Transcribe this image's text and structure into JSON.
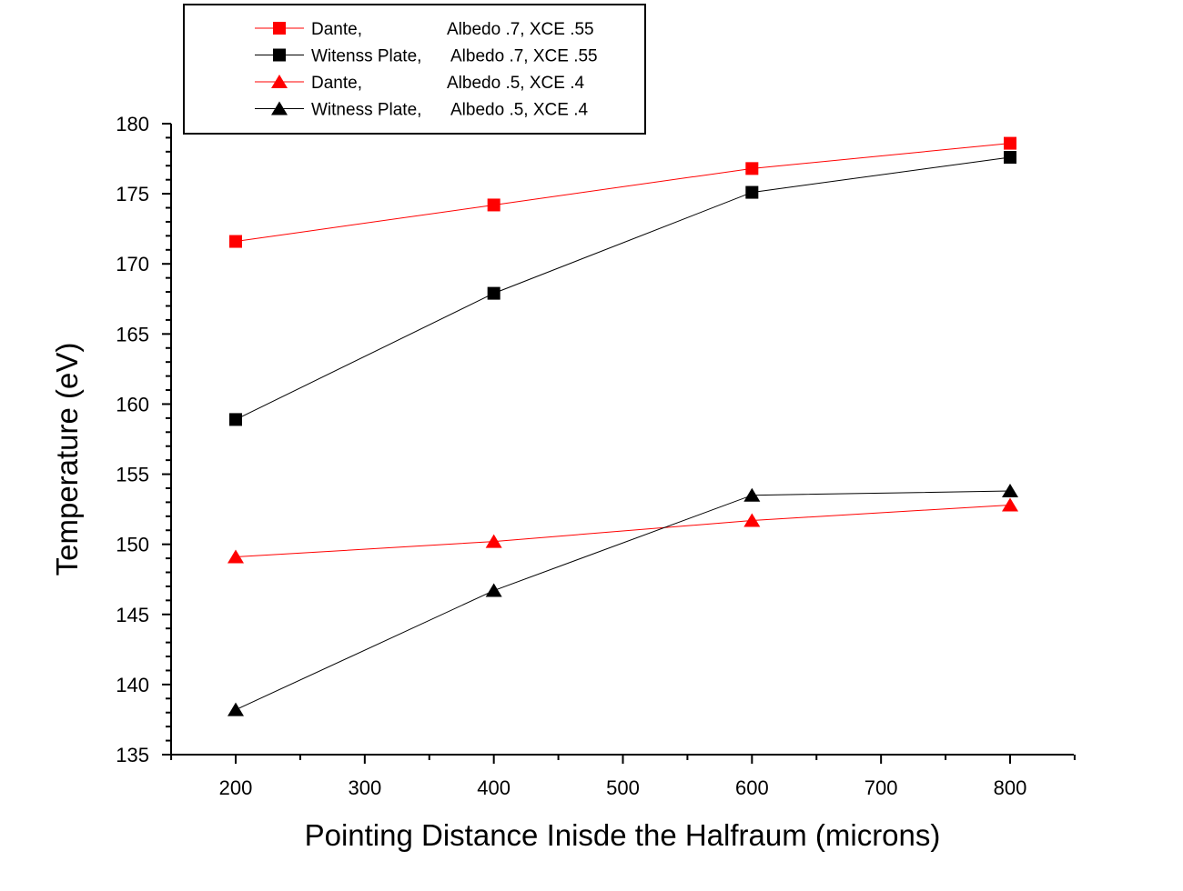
{
  "chart_data": {
    "type": "line",
    "title": "",
    "xlabel": "Pointing Distance Inisde the Halfraum (microns)",
    "ylabel": "Temperature (eV)",
    "xlim": [
      150,
      850
    ],
    "ylim": [
      135,
      180
    ],
    "xticks": [
      200,
      300,
      400,
      500,
      600,
      700,
      800
    ],
    "yticks": [
      135,
      140,
      145,
      150,
      155,
      160,
      165,
      170,
      175,
      180
    ],
    "grid": false,
    "legend_placement": "top-left",
    "x": [
      200,
      400,
      600,
      800
    ],
    "series": [
      {
        "name": "Dante,",
        "params": "Albedo .7, XCE .55",
        "color": "#ff0000",
        "marker": "square",
        "values": [
          171.6,
          174.2,
          176.8,
          178.6
        ]
      },
      {
        "name": "Witenss Plate,",
        "params": "Albedo .7, XCE .55",
        "color": "#000000",
        "marker": "square",
        "values": [
          158.9,
          167.9,
          175.1,
          177.6
        ]
      },
      {
        "name": "Dante,",
        "params": "Albedo .5, XCE .4",
        "color": "#ff0000",
        "marker": "triangle",
        "values": [
          149.1,
          150.2,
          151.7,
          152.8
        ]
      },
      {
        "name": "Witness Plate,",
        "params": "Albedo .5, XCE .4",
        "color": "#000000",
        "marker": "triangle",
        "values": [
          138.2,
          146.7,
          153.5,
          153.8
        ]
      }
    ]
  }
}
